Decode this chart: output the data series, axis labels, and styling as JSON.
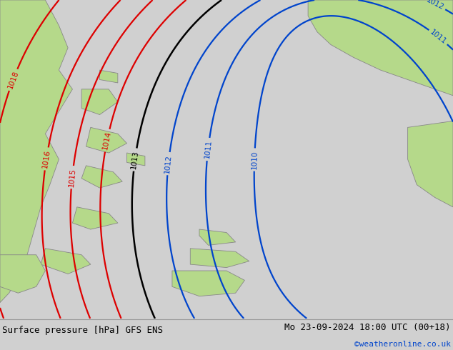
{
  "title_left": "Surface pressure [hPa] GFS ENS",
  "title_right": "Mo 23-09-2024 18:00 UTC (00+18)",
  "credit": "©weatheronline.co.uk",
  "bg_color": "#d0d0d0",
  "land_color": "#b5d98a",
  "sea_color": "#d0d0d0",
  "fig_width": 6.34,
  "fig_height": 4.9,
  "dpi": 100,
  "red_color": "#dd0000",
  "blue_color": "#0044cc",
  "black_color": "#000000",
  "coast_color": "#888888"
}
